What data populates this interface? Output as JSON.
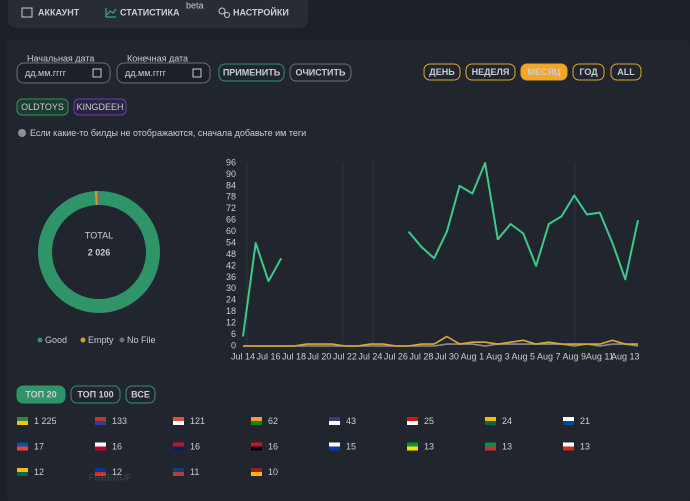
{
  "tabs": [
    {
      "label": "АККАУНТ"
    },
    {
      "label": "СТАТИСТИКА",
      "badge": "beta"
    },
    {
      "label": "НАСТРОЙКИ"
    }
  ],
  "filters": {
    "start_label": "Начальная дата",
    "start_placeholder": "дд.мм.гггг",
    "end_label": "Конечная дата",
    "end_placeholder": "дд.мм.гггг",
    "apply": "ПРИМЕНИТЬ",
    "clear": "ОЧИСТИТЬ"
  },
  "periods": [
    "ДЕНЬ",
    "НЕДЕЛЯ",
    "МЕСЯЦ",
    "ГОД",
    "ALL"
  ],
  "active_period": 2,
  "tags": [
    "OLDTOYS",
    "KINGDEEH"
  ],
  "notice": "Если какие-то билды не отображаются, сначала добавьте им теги",
  "chart_data": [
    {
      "type": "donut",
      "center_title": "TOTAL",
      "total": {
        "value": 2026,
        "label": "2 026"
      },
      "categories": [
        "Good",
        "Empty",
        "No File"
      ],
      "values": [
        2001,
        15,
        10
      ],
      "colors": [
        "#2f9467",
        "#c9a227",
        "#6b7078"
      ]
    },
    {
      "type": "line",
      "categories": [
        "Jul 14",
        null,
        "Jul 16",
        null,
        "Jul 18",
        null,
        "Jul 20",
        null,
        "Jul 22",
        null,
        "Jul 24",
        null,
        "Jul 26",
        null,
        "Jul 28",
        null,
        "Jul 30",
        null,
        "Aug 1",
        null,
        "Aug 3",
        null,
        "Aug 5",
        null,
        "Aug 7",
        null,
        "Aug 9",
        null,
        "Aug 11",
        null,
        "Aug 13",
        null
      ],
      "ylim": [
        0,
        96
      ],
      "yticks": [
        0,
        6,
        12,
        18,
        24,
        30,
        36,
        42,
        48,
        54,
        60,
        66,
        72,
        78,
        84,
        90,
        96
      ],
      "grid": false,
      "series": [
        {
          "name": "Good",
          "color": "#3ec98a",
          "values": [
            5,
            54,
            34,
            46,
            null,
            null,
            null,
            null,
            null,
            null,
            null,
            null,
            null,
            60,
            52,
            46,
            60,
            84,
            80,
            96,
            56,
            64,
            59,
            42,
            64,
            68,
            79,
            69,
            70,
            54,
            35,
            66
          ]
        },
        {
          "name": "Empty",
          "color": "#e0a82e",
          "values": [
            0,
            0,
            0,
            0,
            0,
            1,
            1,
            1,
            0,
            0,
            1,
            1,
            0,
            0,
            1,
            1,
            5,
            1,
            2,
            2,
            1,
            2,
            3,
            1,
            2,
            1,
            1,
            1,
            1,
            3,
            1,
            1
          ]
        },
        {
          "name": "No File",
          "color": "#8a8f98",
          "values": [
            0,
            0,
            0,
            0,
            0,
            0,
            0,
            0,
            0,
            0,
            0,
            0,
            0,
            0,
            0,
            0,
            1,
            1,
            1,
            0,
            1,
            1,
            1,
            1,
            1,
            1,
            0,
            1,
            0,
            1,
            1,
            0
          ]
        }
      ]
    }
  ],
  "top_buttons": [
    "ТОП 20",
    "ТОП 100",
    "ВСЕ"
  ],
  "countries": [
    {
      "value": 1225,
      "label": "1 225"
    },
    133,
    121,
    62,
    43,
    25,
    24,
    21,
    17,
    16,
    16,
    16,
    15,
    13,
    13,
    13,
    12,
    12,
    11,
    10
  ],
  "watermark": "FREEBUF"
}
